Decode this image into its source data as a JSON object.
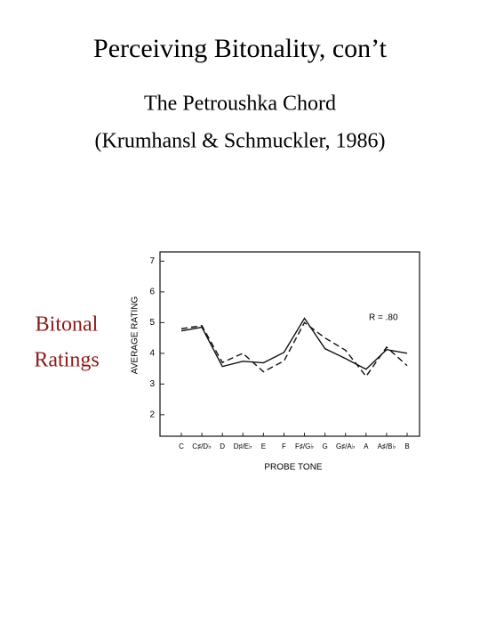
{
  "slide": {
    "title": "Perceiving Bitonality, con’t",
    "subtitle_lines": [
      "The Petroushka Chord",
      "(Krumhansl & Schmuckler, 1986)"
    ],
    "side_label_lines": [
      "Bitonal",
      "Ratings"
    ]
  },
  "chart_data": {
    "type": "line",
    "categories": [
      "C",
      "C♯/D♭",
      "D",
      "D♯/E♭",
      "E",
      "F",
      "F♯/G♭",
      "G",
      "G♯/A♭",
      "A",
      "A♯/B♭",
      "B"
    ],
    "series": [
      {
        "color": "#111111",
        "dash": false,
        "values": [
          4.73,
          4.85,
          3.57,
          3.74,
          3.69,
          4.03,
          5.14,
          4.15,
          3.83,
          3.48,
          4.12,
          4.0
        ]
      },
      {
        "color": "#111111",
        "dash": true,
        "values": [
          4.8,
          4.9,
          3.7,
          4.0,
          3.4,
          3.75,
          5.0,
          4.5,
          4.1,
          3.25,
          4.2,
          3.6
        ]
      }
    ],
    "ylim": [
      1.3,
      7.3
    ],
    "yticks": [
      2,
      3,
      4,
      5,
      6,
      7
    ],
    "ylabel": "AVERAGE RATING",
    "xlabel": "PROBE TONE",
    "annotation": "R = .80",
    "grid": false
  }
}
